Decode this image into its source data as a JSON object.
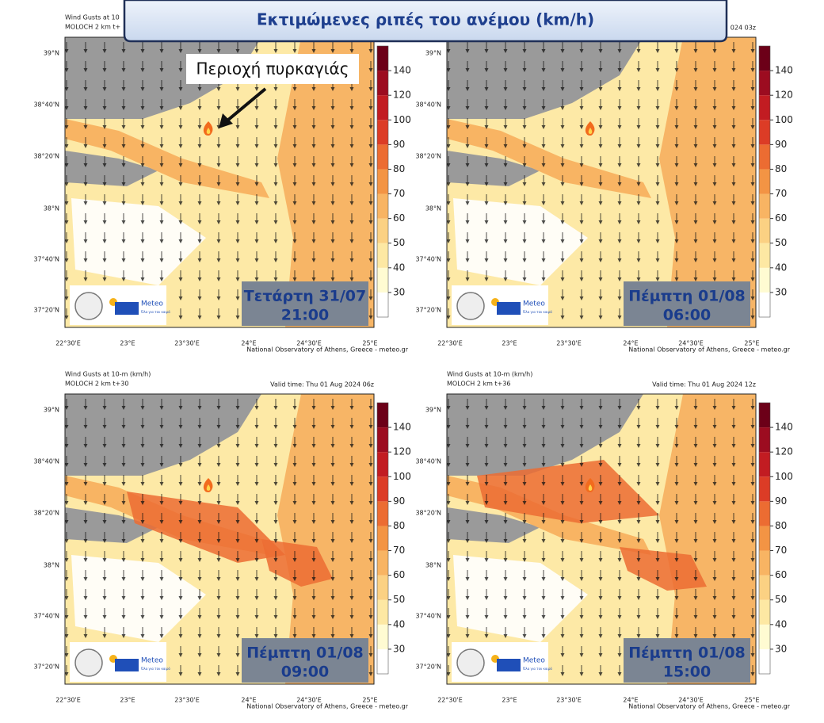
{
  "banner_title": "Εκτιμώμενες ριπές του ανέμου (km/h)",
  "annotation": "Περιοχή πυρκαγιάς",
  "logo": {
    "name": "Meteo",
    "tagline": "Όλα για τον καιρό"
  },
  "lat_labels": [
    "39°N",
    "38°40'N",
    "38°20'N",
    "38°N",
    "37°40'N",
    "37°20'N"
  ],
  "lon_labels": [
    "22°30'E",
    "23°E",
    "23°30'E",
    "24°E",
    "24°30'E",
    "25°E"
  ],
  "footer": "National Observatory of Athens, Greece - meteo.gr",
  "colorbar": {
    "colors": [
      "#ffffff",
      "#fffbd2",
      "#fde8a3",
      "#fbd183",
      "#f8b463",
      "#f39444",
      "#ec6c32",
      "#dc3c26",
      "#c21c22",
      "#9c0c20",
      "#6c0018"
    ],
    "ticks": [
      30,
      40,
      50,
      60,
      70,
      80,
      90,
      100,
      120,
      140
    ]
  },
  "panels": [
    {
      "header": [
        "Wind Gusts at 10",
        "MOLOCH 2 km t+"
      ],
      "day": "Τετάρτη 31/07",
      "time": "21:00"
    },
    {
      "valid_time": "024 03z",
      "day": "Πέμπτη 01/08",
      "time": "06:00"
    },
    {
      "header": [
        "Wind Gusts at 10-m (km/h)",
        "MOLOCH 2 km t+30"
      ],
      "valid_time": "Valid time: Thu 01 Aug 2024 06z",
      "day": "Πέμπτη 01/08",
      "time": "09:00"
    },
    {
      "header": [
        "Wind Gusts at 10-m (km/h)",
        "MOLOCH 2 km t+36"
      ],
      "valid_time": "Valid time: Thu 01 Aug 2024 12z",
      "day": "Πέμπτη 01/08",
      "time": "15:00"
    }
  ]
}
